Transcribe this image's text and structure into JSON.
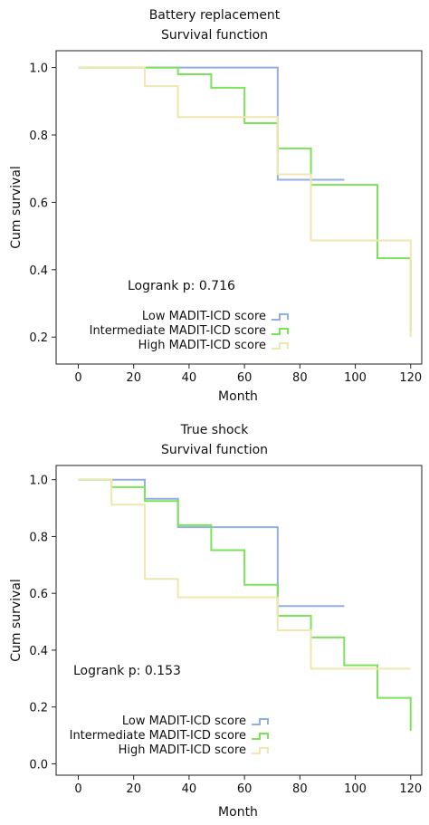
{
  "chart_data": [
    {
      "type": "line",
      "title": "Battery replacement",
      "subtitle": "Survival function",
      "xlabel": "Month",
      "ylabel": "Cum survival",
      "xlim": [
        -8,
        124
      ],
      "ylim": [
        0.12,
        1.05
      ],
      "x_ticks": [
        "0",
        "20",
        "40",
        "60",
        "80",
        "100",
        "120"
      ],
      "y_ticks": [
        "0.2",
        "0.4",
        "0.6",
        "0.8",
        "1.0"
      ],
      "grid": false,
      "legend_position": "bottom-left",
      "annotation": "Logrank p: 0.716",
      "series": [
        {
          "name": "Low MADIT-ICD score",
          "color": "#93aee0",
          "x": [
            0,
            72,
            96
          ],
          "y": [
            1.0,
            0.667,
            0.667
          ]
        },
        {
          "name": "Intermediate MADIT-ICD score",
          "color": "#7be25a",
          "x": [
            0,
            36,
            48,
            60,
            72,
            84,
            108,
            120
          ],
          "y": [
            1.0,
            0.98,
            0.94,
            0.835,
            0.76,
            0.652,
            0.434,
            0.217
          ]
        },
        {
          "name": "High MADIT-ICD score",
          "color": "#f0e6b0",
          "x": [
            0,
            24,
            36,
            72,
            84,
            120
          ],
          "y": [
            1.0,
            0.945,
            0.853,
            0.683,
            0.487,
            0.2
          ]
        }
      ]
    },
    {
      "type": "line",
      "title": "True shock",
      "subtitle": "Survival function",
      "xlabel": "Month",
      "ylabel": "Cum survival",
      "xlim": [
        -8,
        124
      ],
      "ylim": [
        -0.04,
        1.05
      ],
      "x_ticks": [
        "0",
        "20",
        "40",
        "60",
        "80",
        "100",
        "120"
      ],
      "y_ticks": [
        "0.0",
        "0.2",
        "0.4",
        "0.6",
        "0.8",
        "1.0"
      ],
      "grid": false,
      "legend_position": "bottom-left",
      "annotation": "Logrank p: 0.153",
      "series": [
        {
          "name": "Low MADIT-ICD score",
          "color": "#93aee0",
          "x": [
            0,
            24,
            36,
            72,
            96
          ],
          "y": [
            1.0,
            0.933,
            0.833,
            0.555,
            0.555
          ]
        },
        {
          "name": "Intermediate MADIT-ICD score",
          "color": "#7be25a",
          "x": [
            0,
            12,
            24,
            36,
            48,
            60,
            72,
            84,
            96,
            108,
            120
          ],
          "y": [
            1.0,
            0.974,
            0.925,
            0.84,
            0.752,
            0.63,
            0.521,
            0.445,
            0.347,
            0.232,
            0.116
          ]
        },
        {
          "name": "High MADIT-ICD score",
          "color": "#f0e6b0",
          "x": [
            0,
            12,
            24,
            36,
            72,
            84,
            120
          ],
          "y": [
            1.0,
            0.912,
            0.651,
            0.586,
            0.47,
            0.335,
            0.335
          ]
        }
      ]
    }
  ]
}
